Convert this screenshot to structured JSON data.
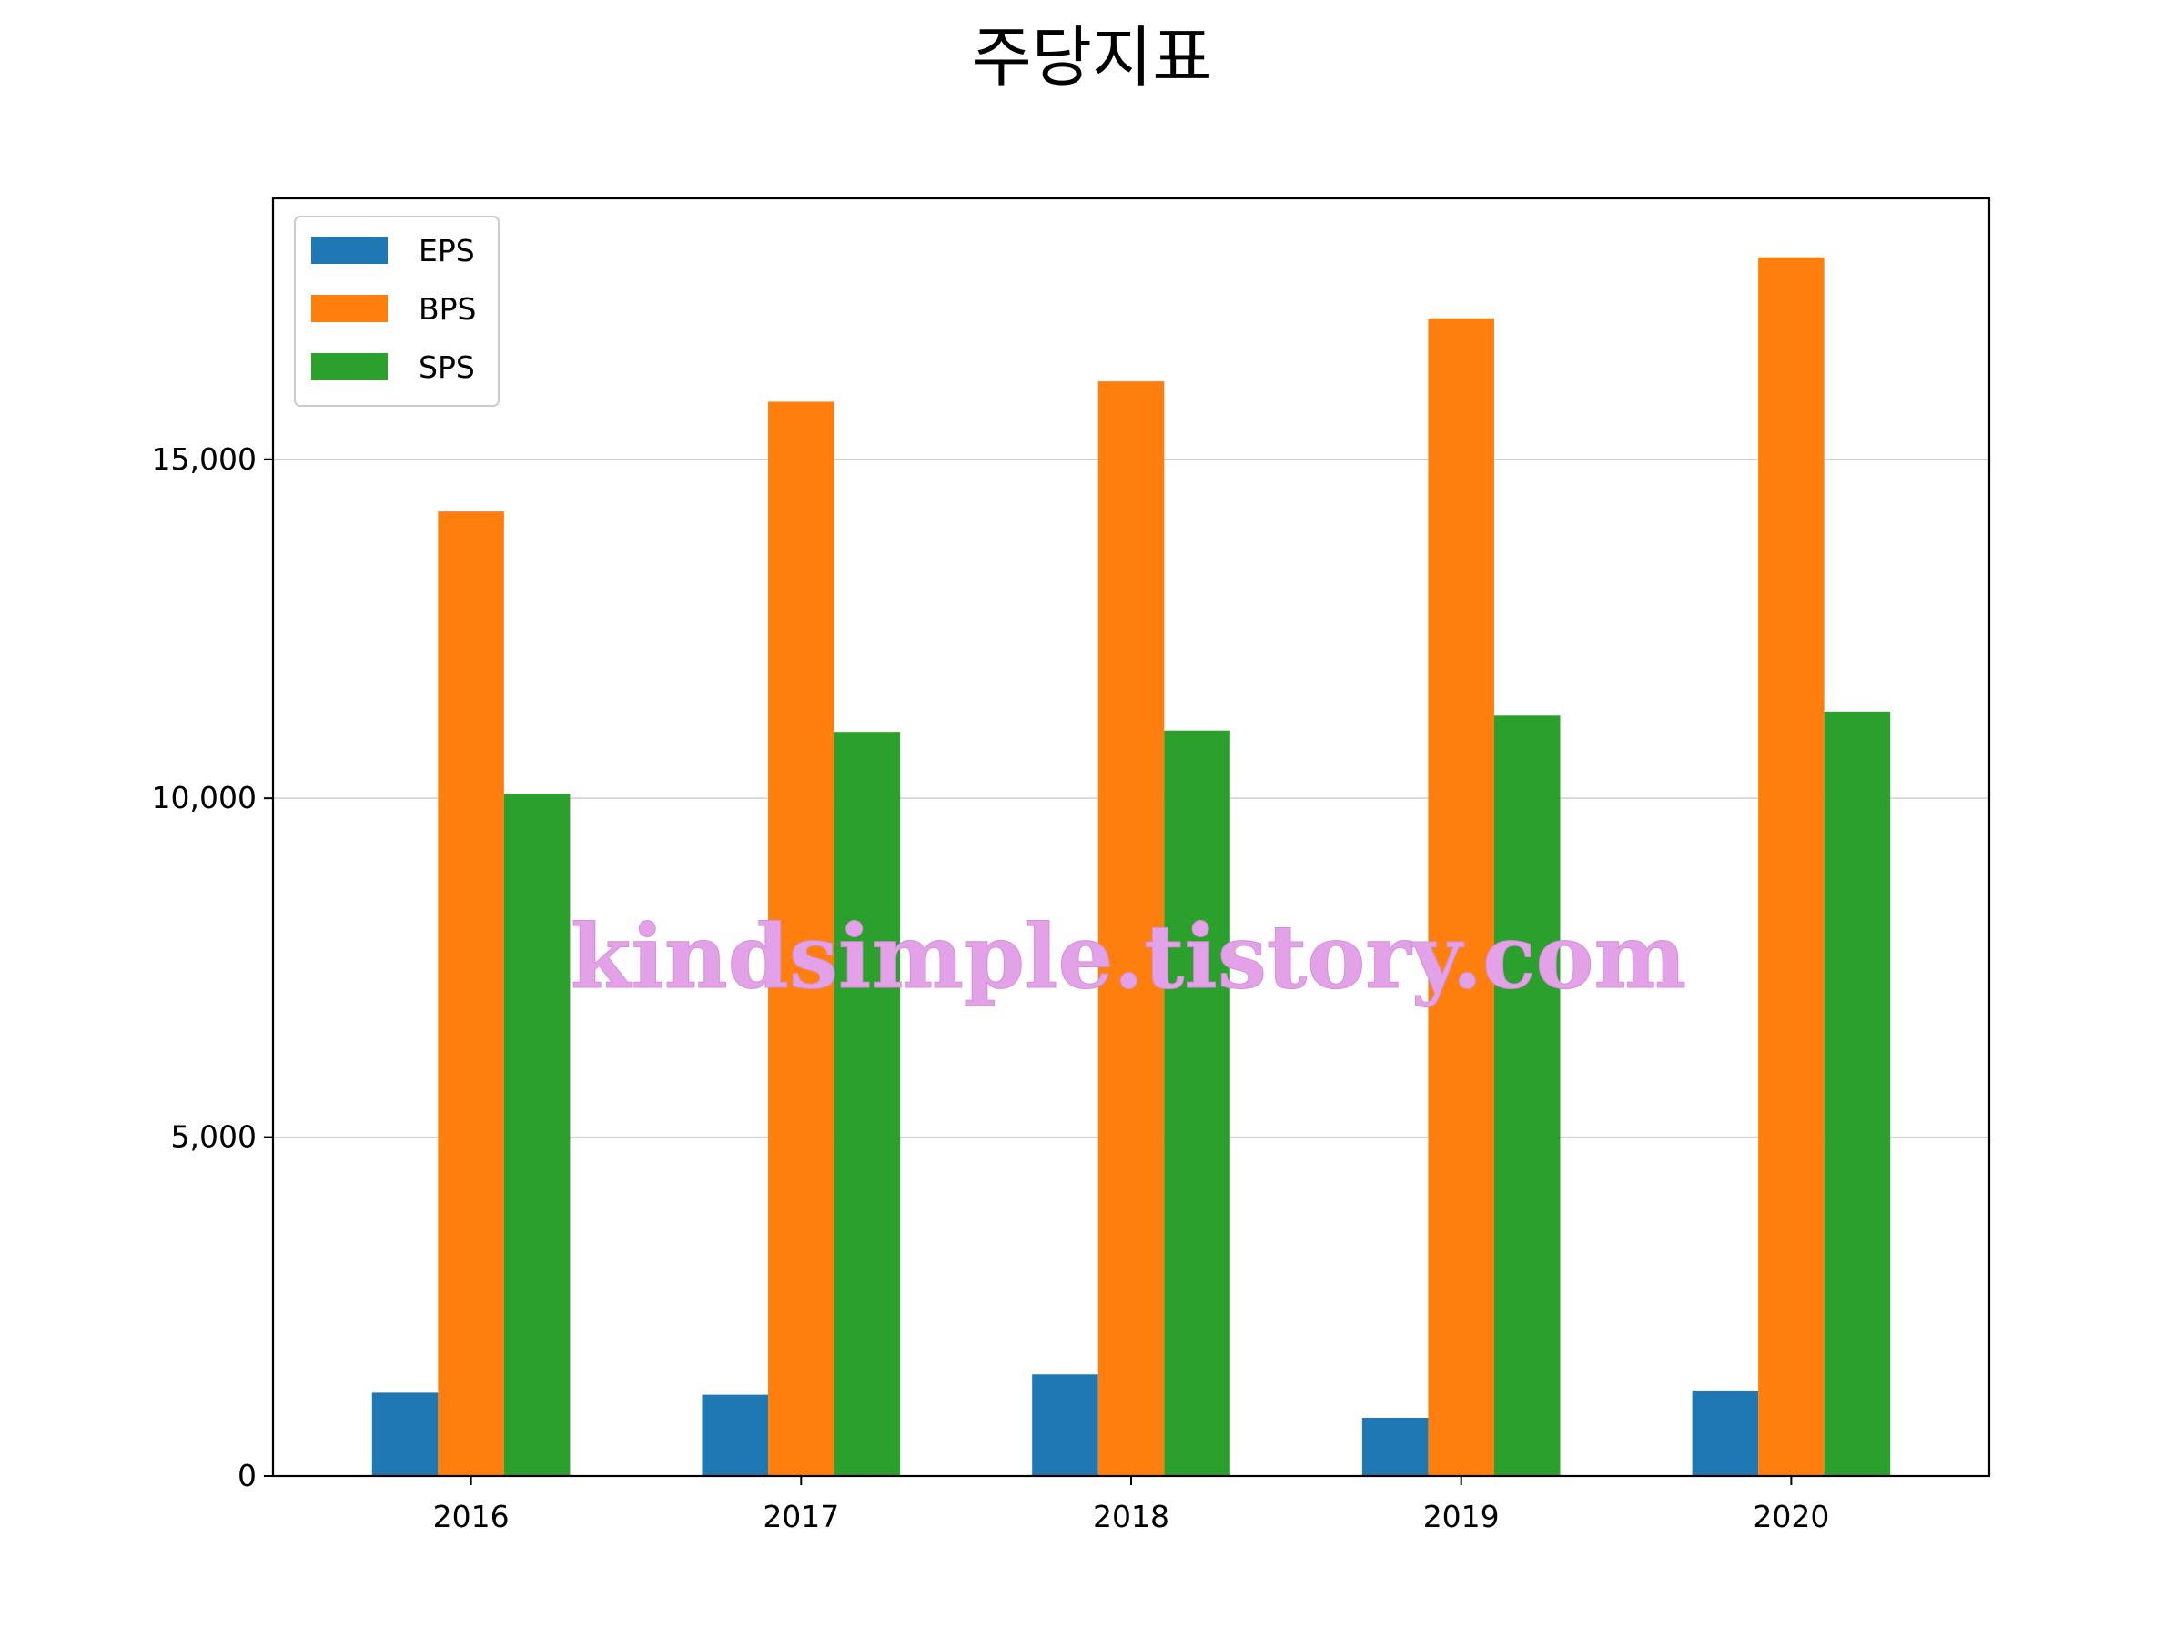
{
  "chart_data": {
    "type": "bar",
    "title": "주당지표",
    "categories": [
      "2016",
      "2017",
      "2018",
      "2019",
      "2020"
    ],
    "series": [
      {
        "name": "EPS",
        "color": "#1f77b4",
        "values": [
          1230,
          1200,
          1500,
          860,
          1250
        ]
      },
      {
        "name": "BPS",
        "color": "#ff7f0e",
        "values": [
          14230,
          15850,
          16150,
          17080,
          17980
        ]
      },
      {
        "name": "SPS",
        "color": "#2ca02c",
        "values": [
          10070,
          10980,
          11000,
          11220,
          11280
        ]
      }
    ],
    "ylim": [
      0,
      18850
    ],
    "yticks": [
      0,
      5000,
      10000,
      15000
    ],
    "ytick_labels": [
      "0",
      "5,000",
      "10,000",
      "15,000"
    ],
    "xlabel": "",
    "ylabel": "",
    "grid": "horizontal",
    "legend_position": "top-left",
    "watermark": "kindsimple.tistory.com"
  }
}
